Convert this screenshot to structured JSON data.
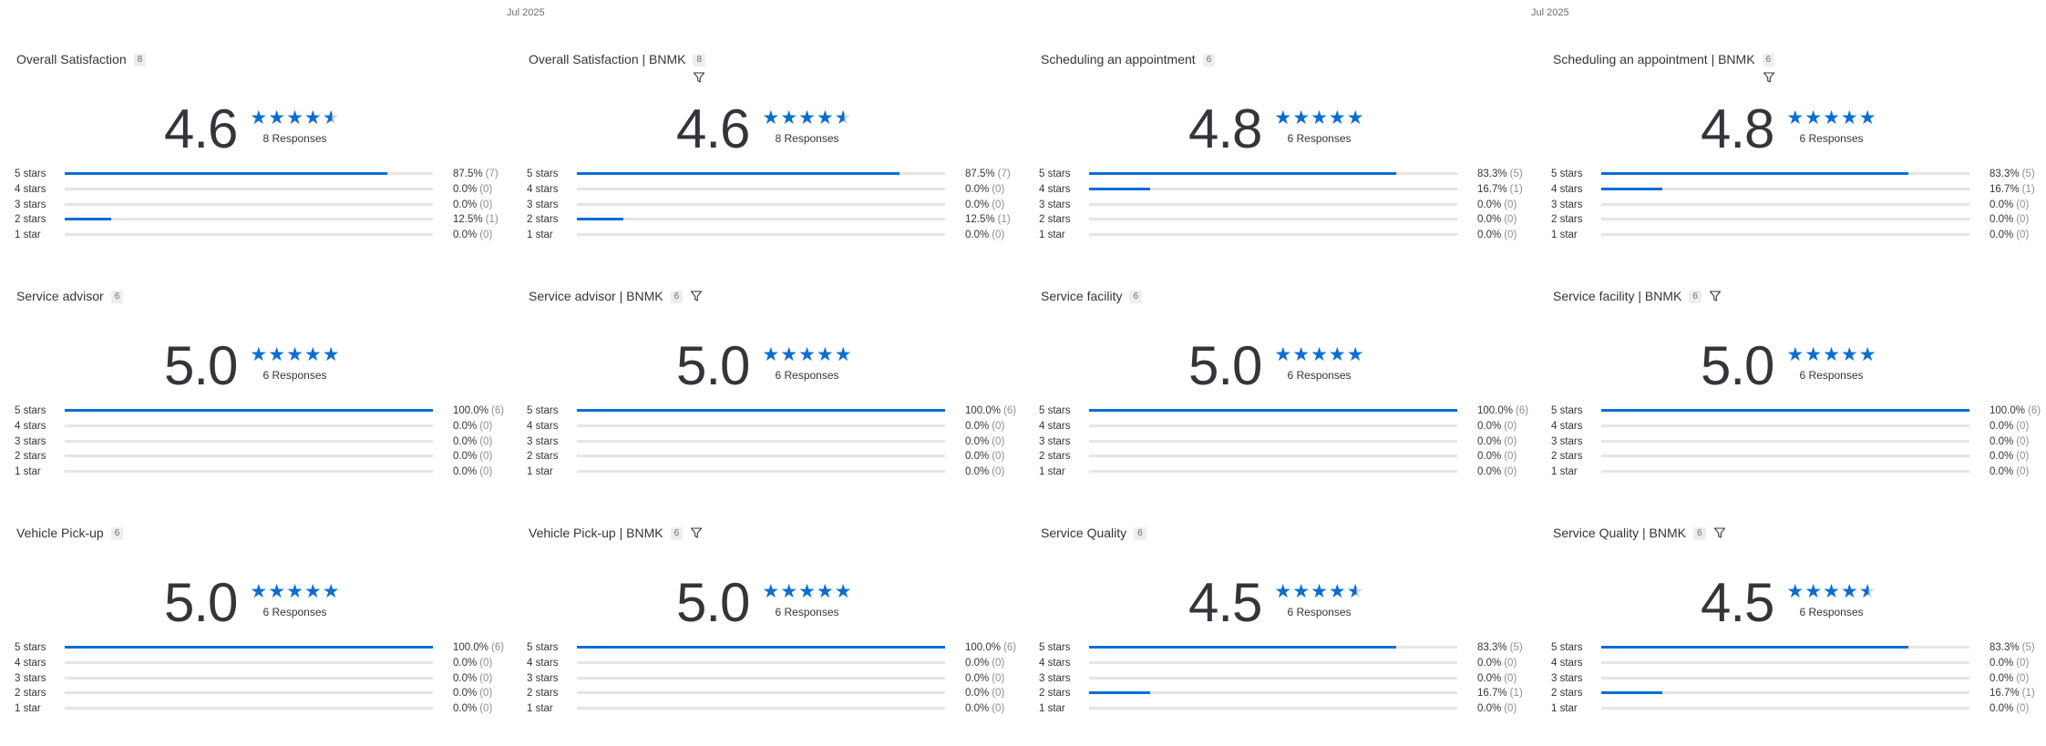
{
  "header": {
    "dates": [
      "Jul 2025",
      "Jul 2025"
    ]
  },
  "theme": {
    "accent": "#0a6ed1",
    "track": "#e5e5e5",
    "text": "#32363a"
  },
  "cards": [
    {
      "title": "Overall Satisfaction",
      "badge": "8",
      "filter": "none",
      "score": "4.6",
      "stars": 4.5,
      "responses": "8 Responses",
      "rows": [
        {
          "label": "5 stars",
          "pct": "87.5%",
          "count": "(7)",
          "fill": 0.875
        },
        {
          "label": "4 stars",
          "pct": "0.0%",
          "count": "(0)",
          "fill": 0
        },
        {
          "label": "3 stars",
          "pct": "0.0%",
          "count": "(0)",
          "fill": 0
        },
        {
          "label": "2 stars",
          "pct": "12.5%",
          "count": "(1)",
          "fill": 0.125
        },
        {
          "label": "1 star",
          "pct": "0.0%",
          "count": "(0)",
          "fill": 0
        }
      ]
    },
    {
      "title": "Overall Satisfaction | BNMK",
      "badge": "8",
      "filter": "below",
      "score": "4.6",
      "stars": 4.5,
      "responses": "8 Responses",
      "rows": [
        {
          "label": "5 stars",
          "pct": "87.5%",
          "count": "(7)",
          "fill": 0.875
        },
        {
          "label": "4 stars",
          "pct": "0.0%",
          "count": "(0)",
          "fill": 0
        },
        {
          "label": "3 stars",
          "pct": "0.0%",
          "count": "(0)",
          "fill": 0
        },
        {
          "label": "2 stars",
          "pct": "12.5%",
          "count": "(1)",
          "fill": 0.125
        },
        {
          "label": "1 star",
          "pct": "0.0%",
          "count": "(0)",
          "fill": 0
        }
      ]
    },
    {
      "title": "Scheduling an appointment",
      "badge": "6",
      "filter": "none",
      "score": "4.8",
      "stars": 5,
      "responses": "6 Responses",
      "rows": [
        {
          "label": "5 stars",
          "pct": "83.3%",
          "count": "(5)",
          "fill": 0.833
        },
        {
          "label": "4 stars",
          "pct": "16.7%",
          "count": "(1)",
          "fill": 0.167
        },
        {
          "label": "3 stars",
          "pct": "0.0%",
          "count": "(0)",
          "fill": 0
        },
        {
          "label": "2 stars",
          "pct": "0.0%",
          "count": "(0)",
          "fill": 0
        },
        {
          "label": "1 star",
          "pct": "0.0%",
          "count": "(0)",
          "fill": 0
        }
      ]
    },
    {
      "title": "Scheduling an appointment | BNMK",
      "badge": "6",
      "filter": "below",
      "score": "4.8",
      "stars": 5,
      "responses": "6 Responses",
      "rows": [
        {
          "label": "5 stars",
          "pct": "83.3%",
          "count": "(5)",
          "fill": 0.833
        },
        {
          "label": "4 stars",
          "pct": "16.7%",
          "count": "(1)",
          "fill": 0.167
        },
        {
          "label": "3 stars",
          "pct": "0.0%",
          "count": "(0)",
          "fill": 0
        },
        {
          "label": "2 stars",
          "pct": "0.0%",
          "count": "(0)",
          "fill": 0
        },
        {
          "label": "1 star",
          "pct": "0.0%",
          "count": "(0)",
          "fill": 0
        }
      ]
    },
    {
      "title": "Service advisor",
      "badge": "6",
      "filter": "none",
      "score": "5.0",
      "stars": 5,
      "responses": "6 Responses",
      "rows": [
        {
          "label": "5 stars",
          "pct": "100.0%",
          "count": "(6)",
          "fill": 1
        },
        {
          "label": "4 stars",
          "pct": "0.0%",
          "count": "(0)",
          "fill": 0
        },
        {
          "label": "3 stars",
          "pct": "0.0%",
          "count": "(0)",
          "fill": 0
        },
        {
          "label": "2 stars",
          "pct": "0.0%",
          "count": "(0)",
          "fill": 0
        },
        {
          "label": "1 star",
          "pct": "0.0%",
          "count": "(0)",
          "fill": 0
        }
      ]
    },
    {
      "title": "Service advisor | BNMK",
      "badge": "6",
      "filter": "inline",
      "score": "5.0",
      "stars": 5,
      "responses": "6 Responses",
      "rows": [
        {
          "label": "5 stars",
          "pct": "100.0%",
          "count": "(6)",
          "fill": 1
        },
        {
          "label": "4 stars",
          "pct": "0.0%",
          "count": "(0)",
          "fill": 0
        },
        {
          "label": "3 stars",
          "pct": "0.0%",
          "count": "(0)",
          "fill": 0
        },
        {
          "label": "2 stars",
          "pct": "0.0%",
          "count": "(0)",
          "fill": 0
        },
        {
          "label": "1 star",
          "pct": "0.0%",
          "count": "(0)",
          "fill": 0
        }
      ]
    },
    {
      "title": "Service facility",
      "badge": "6",
      "filter": "none",
      "score": "5.0",
      "stars": 5,
      "responses": "6 Responses",
      "rows": [
        {
          "label": "5 stars",
          "pct": "100.0%",
          "count": "(6)",
          "fill": 1
        },
        {
          "label": "4 stars",
          "pct": "0.0%",
          "count": "(0)",
          "fill": 0
        },
        {
          "label": "3 stars",
          "pct": "0.0%",
          "count": "(0)",
          "fill": 0
        },
        {
          "label": "2 stars",
          "pct": "0.0%",
          "count": "(0)",
          "fill": 0
        },
        {
          "label": "1 star",
          "pct": "0.0%",
          "count": "(0)",
          "fill": 0
        }
      ]
    },
    {
      "title": "Service facility | BNMK",
      "badge": "6",
      "filter": "inline",
      "score": "5.0",
      "stars": 5,
      "responses": "6 Responses",
      "rows": [
        {
          "label": "5 stars",
          "pct": "100.0%",
          "count": "(6)",
          "fill": 1
        },
        {
          "label": "4 stars",
          "pct": "0.0%",
          "count": "(0)",
          "fill": 0
        },
        {
          "label": "3 stars",
          "pct": "0.0%",
          "count": "(0)",
          "fill": 0
        },
        {
          "label": "2 stars",
          "pct": "0.0%",
          "count": "(0)",
          "fill": 0
        },
        {
          "label": "1 star",
          "pct": "0.0%",
          "count": "(0)",
          "fill": 0
        }
      ]
    },
    {
      "title": "Vehicle Pick-up",
      "badge": "6",
      "filter": "none",
      "score": "5.0",
      "stars": 5,
      "responses": "6 Responses",
      "rows": [
        {
          "label": "5 stars",
          "pct": "100.0%",
          "count": "(6)",
          "fill": 1
        },
        {
          "label": "4 stars",
          "pct": "0.0%",
          "count": "(0)",
          "fill": 0
        },
        {
          "label": "3 stars",
          "pct": "0.0%",
          "count": "(0)",
          "fill": 0
        },
        {
          "label": "2 stars",
          "pct": "0.0%",
          "count": "(0)",
          "fill": 0
        },
        {
          "label": "1 star",
          "pct": "0.0%",
          "count": "(0)",
          "fill": 0
        }
      ]
    },
    {
      "title": "Vehicle Pick-up | BNMK",
      "badge": "6",
      "filter": "inline",
      "score": "5.0",
      "stars": 5,
      "responses": "6 Responses",
      "rows": [
        {
          "label": "5 stars",
          "pct": "100.0%",
          "count": "(6)",
          "fill": 1
        },
        {
          "label": "4 stars",
          "pct": "0.0%",
          "count": "(0)",
          "fill": 0
        },
        {
          "label": "3 stars",
          "pct": "0.0%",
          "count": "(0)",
          "fill": 0
        },
        {
          "label": "2 stars",
          "pct": "0.0%",
          "count": "(0)",
          "fill": 0
        },
        {
          "label": "1 star",
          "pct": "0.0%",
          "count": "(0)",
          "fill": 0
        }
      ]
    },
    {
      "title": "Service Quality",
      "badge": "6",
      "filter": "none",
      "score": "4.5",
      "stars": 4.5,
      "responses": "6 Responses",
      "rows": [
        {
          "label": "5 stars",
          "pct": "83.3%",
          "count": "(5)",
          "fill": 0.833
        },
        {
          "label": "4 stars",
          "pct": "0.0%",
          "count": "(0)",
          "fill": 0
        },
        {
          "label": "3 stars",
          "pct": "0.0%",
          "count": "(0)",
          "fill": 0
        },
        {
          "label": "2 stars",
          "pct": "16.7%",
          "count": "(1)",
          "fill": 0.167
        },
        {
          "label": "1 star",
          "pct": "0.0%",
          "count": "(0)",
          "fill": 0
        }
      ]
    },
    {
      "title": "Service Quality | BNMK",
      "badge": "6",
      "filter": "inline",
      "score": "4.5",
      "stars": 4.5,
      "responses": "6 Responses",
      "rows": [
        {
          "label": "5 stars",
          "pct": "83.3%",
          "count": "(5)",
          "fill": 0.833
        },
        {
          "label": "4 stars",
          "pct": "0.0%",
          "count": "(0)",
          "fill": 0
        },
        {
          "label": "3 stars",
          "pct": "0.0%",
          "count": "(0)",
          "fill": 0
        },
        {
          "label": "2 stars",
          "pct": "16.7%",
          "count": "(1)",
          "fill": 0.167
        },
        {
          "label": "1 star",
          "pct": "0.0%",
          "count": "(0)",
          "fill": 0
        }
      ]
    }
  ]
}
